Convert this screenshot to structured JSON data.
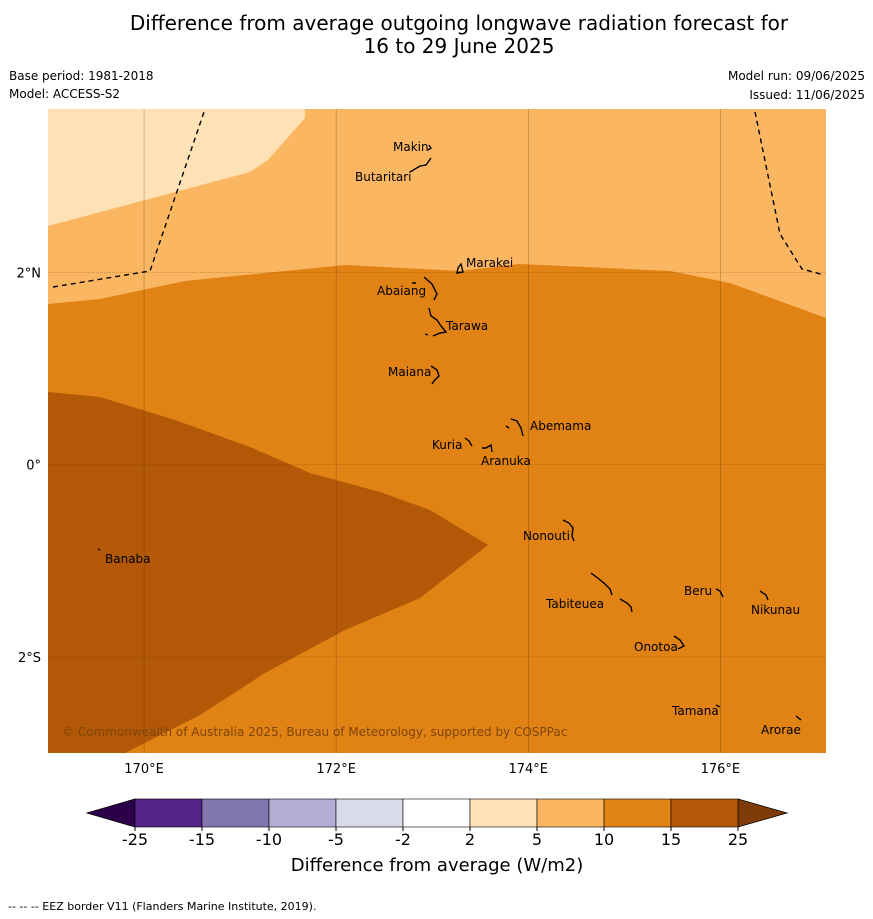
{
  "title_line1": "Difference from average outgoing longwave radiation forecast for",
  "title_line2": "16 to 29 June 2025",
  "base_period": "Base period: 1981-2018",
  "model": "Model: ACCESS-S2",
  "model_run": "Model run: 09/06/2025",
  "issued": "Issued: 11/06/2025",
  "copyright": "© Commonwealth of Australia 2025, Bureau of Meteorology, supported by COSPPac",
  "footer": "--  --  -- EEZ border V11 (Flanders Marine Institute, 2019).",
  "map": {
    "lon_range": [
      169,
      177.1
    ],
    "lat_range": [
      -3,
      3.7
    ],
    "lon_ticks": [
      {
        "value": 170,
        "label": "170°E"
      },
      {
        "value": 172,
        "label": "172°E"
      },
      {
        "value": 174,
        "label": "174°E"
      },
      {
        "value": 176,
        "label": "176°E"
      }
    ],
    "lat_ticks": [
      {
        "value": 2,
        "label": "2°N"
      },
      {
        "value": 0,
        "label": "0°"
      },
      {
        "value": -2,
        "label": "2°S"
      }
    ],
    "islands": [
      {
        "name": "Makin",
        "lon": 172.9,
        "lat": 3.35
      },
      {
        "name": "Butaritari",
        "lon": 172.9,
        "lat": 3.1
      },
      {
        "name": "Marakei",
        "lon": 173.3,
        "lat": 2.0
      },
      {
        "name": "Abaiang",
        "lon": 173.0,
        "lat": 1.85
      },
      {
        "name": "Tarawa",
        "lon": 173.0,
        "lat": 1.45
      },
      {
        "name": "Maiana",
        "lon": 173.0,
        "lat": 0.95
      },
      {
        "name": "Abemama",
        "lon": 173.85,
        "lat": 0.4
      },
      {
        "name": "Kuria",
        "lon": 173.4,
        "lat": 0.22
      },
      {
        "name": "Aranuka",
        "lon": 173.6,
        "lat": 0.15
      },
      {
        "name": "Banaba",
        "lon": 169.55,
        "lat": -0.87
      },
      {
        "name": "Nonouti",
        "lon": 174.4,
        "lat": -0.65
      },
      {
        "name": "Tabiteuea",
        "lon": 174.9,
        "lat": -1.35
      },
      {
        "name": "Beru",
        "lon": 176.0,
        "lat": -1.33
      },
      {
        "name": "Nikunau",
        "lon": 176.45,
        "lat": -1.35
      },
      {
        "name": "Onotoa",
        "lon": 175.58,
        "lat": -1.85
      },
      {
        "name": "Tamana",
        "lon": 175.98,
        "lat": -2.5
      },
      {
        "name": "Arorae",
        "lon": 176.82,
        "lat": -2.65
      }
    ]
  },
  "colorbar": {
    "title": "Difference from average (W/m2)",
    "ticks": [
      "-25",
      "-15",
      "-10",
      "-5",
      "-2",
      "2",
      "5",
      "10",
      "15",
      "25"
    ],
    "colors": [
      "#552388",
      "#8276b1",
      "#b3acd4",
      "#d9daeb",
      "#ffffff",
      "#fee1b5",
      "#fbb661",
      "#e08214",
      "#b35807"
    ],
    "under_color": "#2d004b",
    "over_color": "#7f3b08"
  },
  "colors": {
    "band_2_5": "#fee1b5",
    "band_5_10": "#fbb661",
    "band_10_15": "#e08214",
    "band_15_25": "#b35807"
  }
}
